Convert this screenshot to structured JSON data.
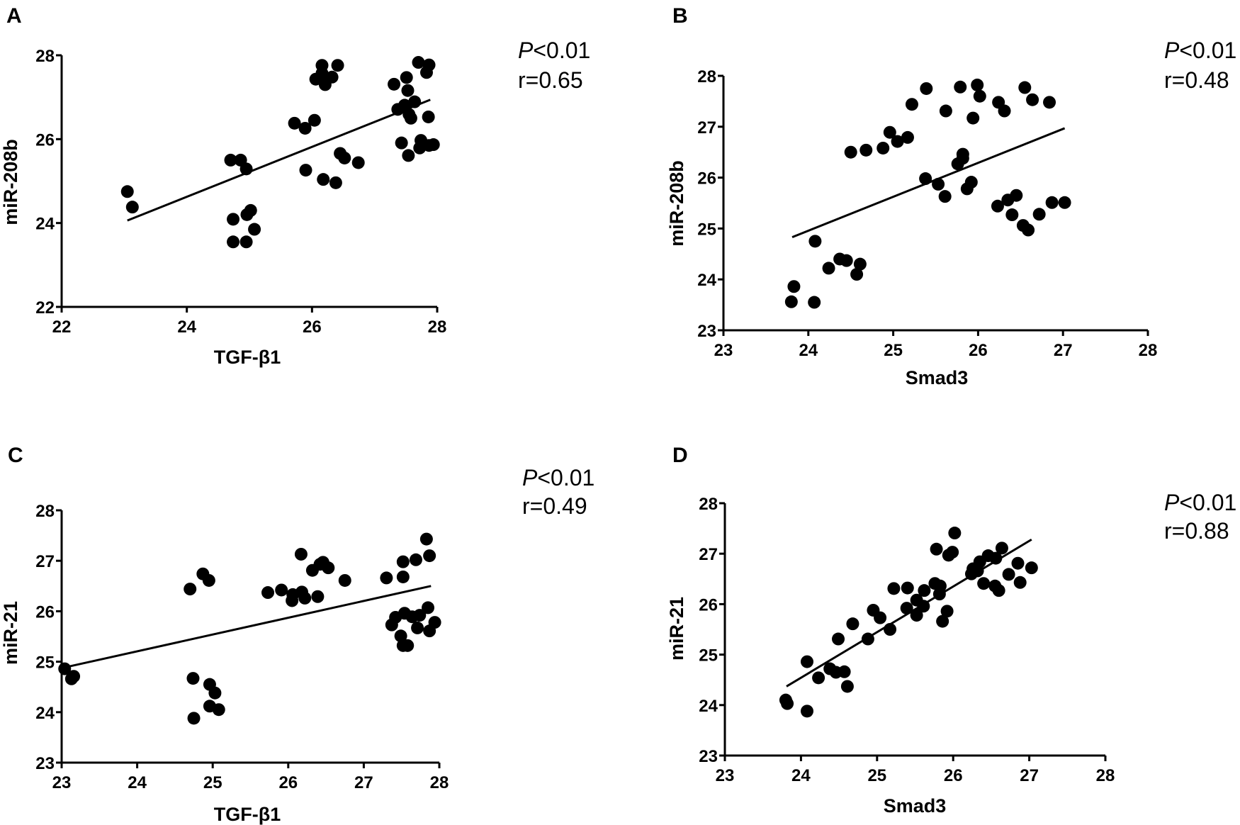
{
  "chart_data": [
    {
      "panel": "A",
      "type": "scatter",
      "xlabel": "TGF-β1",
      "ylabel": "miR-208b",
      "xlim": [
        22,
        28
      ],
      "ylim": [
        22,
        28
      ],
      "xticks": [
        "22",
        "24",
        "26",
        "28"
      ],
      "yticks": [
        "22",
        "24",
        "26",
        "28"
      ],
      "p_prefix": "P",
      "p_value": "<0.01",
      "r_text": "r=0.65",
      "fit_line": [
        [
          23.05,
          24.06
        ],
        [
          27.89,
          26.94
        ]
      ],
      "points": [
        [
          23.05,
          24.75
        ],
        [
          23.13,
          24.38
        ],
        [
          24.7,
          25.5
        ],
        [
          24.86,
          25.5
        ],
        [
          24.95,
          25.29
        ],
        [
          24.74,
          24.09
        ],
        [
          25.02,
          24.3
        ],
        [
          24.96,
          24.2
        ],
        [
          25.08,
          23.85
        ],
        [
          24.74,
          23.55
        ],
        [
          24.95,
          23.55
        ],
        [
          25.72,
          26.38
        ],
        [
          25.89,
          26.26
        ],
        [
          26.04,
          26.45
        ],
        [
          25.9,
          25.26
        ],
        [
          26.18,
          25.04
        ],
        [
          26.38,
          24.96
        ],
        [
          26.45,
          25.66
        ],
        [
          26.52,
          25.55
        ],
        [
          26.74,
          25.44
        ],
        [
          26.06,
          27.43
        ],
        [
          26.16,
          27.76
        ],
        [
          26.32,
          27.48
        ],
        [
          26.21,
          27.3
        ],
        [
          26.41,
          27.76
        ],
        [
          26.16,
          27.57
        ],
        [
          27.31,
          27.31
        ],
        [
          27.51,
          27.47
        ],
        [
          27.53,
          27.16
        ],
        [
          27.64,
          26.89
        ],
        [
          27.48,
          26.81
        ],
        [
          27.37,
          26.71
        ],
        [
          27.55,
          26.59
        ],
        [
          27.58,
          26.5
        ],
        [
          27.86,
          26.53
        ],
        [
          27.7,
          27.83
        ],
        [
          27.87,
          27.77
        ],
        [
          27.83,
          27.59
        ],
        [
          27.43,
          25.91
        ],
        [
          27.74,
          25.97
        ],
        [
          27.72,
          25.79
        ],
        [
          27.54,
          25.61
        ],
        [
          27.87,
          25.85
        ],
        [
          27.94,
          25.87
        ]
      ]
    },
    {
      "panel": "B",
      "type": "scatter",
      "xlabel": "Smad3",
      "ylabel": "miR-208b",
      "xlim": [
        23,
        28
      ],
      "ylim": [
        23,
        28
      ],
      "xticks": [
        "23",
        "24",
        "25",
        "26",
        "27",
        "28"
      ],
      "yticks": [
        "23",
        "24",
        "25",
        "26",
        "27",
        "28"
      ],
      "p_prefix": "P",
      "p_value": "<0.01",
      "r_text": "r=0.48",
      "fit_line": [
        [
          23.81,
          24.83
        ],
        [
          27.02,
          26.97
        ]
      ],
      "points": [
        [
          23.8,
          23.56
        ],
        [
          23.83,
          23.86
        ],
        [
          24.07,
          23.55
        ],
        [
          24.08,
          24.75
        ],
        [
          24.24,
          24.22
        ],
        [
          24.37,
          24.4
        ],
        [
          24.45,
          24.37
        ],
        [
          24.57,
          24.1
        ],
        [
          24.61,
          24.3
        ],
        [
          24.5,
          26.5
        ],
        [
          24.68,
          26.54
        ],
        [
          24.88,
          26.58
        ],
        [
          24.96,
          26.89
        ],
        [
          25.05,
          26.71
        ],
        [
          25.17,
          26.79
        ],
        [
          25.22,
          27.44
        ],
        [
          25.39,
          27.75
        ],
        [
          25.38,
          25.98
        ],
        [
          25.53,
          25.87
        ],
        [
          25.61,
          25.63
        ],
        [
          25.62,
          27.31
        ],
        [
          25.76,
          26.27
        ],
        [
          25.82,
          26.38
        ],
        [
          25.82,
          26.46
        ],
        [
          25.79,
          27.78
        ],
        [
          25.92,
          25.91
        ],
        [
          25.87,
          25.78
        ],
        [
          25.94,
          27.17
        ],
        [
          25.99,
          27.82
        ],
        [
          26.02,
          27.6
        ],
        [
          26.24,
          27.48
        ],
        [
          26.31,
          27.31
        ],
        [
          26.23,
          25.44
        ],
        [
          26.35,
          25.56
        ],
        [
          26.45,
          25.65
        ],
        [
          26.4,
          25.27
        ],
        [
          26.53,
          25.06
        ],
        [
          26.59,
          24.97
        ],
        [
          26.72,
          25.28
        ],
        [
          26.55,
          27.77
        ],
        [
          26.64,
          27.53
        ],
        [
          26.84,
          27.48
        ],
        [
          26.87,
          25.51
        ],
        [
          27.02,
          25.51
        ]
      ]
    },
    {
      "panel": "C",
      "type": "scatter",
      "xlabel": "TGF-β1",
      "ylabel": "miR-21",
      "xlim": [
        23,
        28
      ],
      "ylim": [
        23,
        28
      ],
      "xticks": [
        "23",
        "24",
        "25",
        "26",
        "27",
        "28"
      ],
      "yticks": [
        "23",
        "24",
        "25",
        "26",
        "27",
        "28"
      ],
      "p_prefix": "P",
      "p_value": "<0.01",
      "r_text": "r=0.49",
      "fit_line": [
        [
          23.05,
          24.89
        ],
        [
          27.89,
          26.5
        ]
      ],
      "points": [
        [
          23.04,
          24.86
        ],
        [
          23.13,
          24.66
        ],
        [
          23.16,
          24.71
        ],
        [
          24.7,
          26.44
        ],
        [
          24.87,
          26.74
        ],
        [
          24.95,
          26.61
        ],
        [
          24.74,
          24.67
        ],
        [
          24.96,
          24.55
        ],
        [
          25.03,
          24.38
        ],
        [
          24.96,
          24.12
        ],
        [
          25.08,
          24.05
        ],
        [
          24.75,
          23.88
        ],
        [
          25.73,
          26.37
        ],
        [
          25.91,
          26.42
        ],
        [
          26.05,
          26.21
        ],
        [
          26.06,
          26.33
        ],
        [
          26.18,
          26.38
        ],
        [
          26.22,
          26.26
        ],
        [
          26.17,
          27.13
        ],
        [
          26.32,
          26.81
        ],
        [
          26.39,
          26.29
        ],
        [
          26.42,
          26.93
        ],
        [
          26.46,
          26.97
        ],
        [
          26.53,
          26.86
        ],
        [
          26.75,
          26.61
        ],
        [
          27.3,
          26.66
        ],
        [
          27.52,
          26.68
        ],
        [
          27.52,
          26.98
        ],
        [
          27.69,
          27.02
        ],
        [
          27.83,
          27.43
        ],
        [
          27.87,
          27.1
        ],
        [
          27.37,
          25.73
        ],
        [
          27.42,
          25.88
        ],
        [
          27.54,
          25.96
        ],
        [
          27.64,
          25.89
        ],
        [
          27.74,
          25.92
        ],
        [
          27.49,
          25.51
        ],
        [
          27.52,
          25.32
        ],
        [
          27.58,
          25.32
        ],
        [
          27.71,
          25.67
        ],
        [
          27.85,
          26.07
        ],
        [
          27.87,
          25.61
        ],
        [
          27.94,
          25.78
        ]
      ]
    },
    {
      "panel": "D",
      "type": "scatter",
      "xlabel": "Smad3",
      "ylabel": "miR-21",
      "xlim": [
        23,
        28
      ],
      "ylim": [
        23,
        28
      ],
      "xticks": [
        "23",
        "24",
        "25",
        "26",
        "27",
        "28"
      ],
      "yticks": [
        "23",
        "24",
        "25",
        "26",
        "27",
        "28"
      ],
      "p_prefix": "P",
      "p_value": "<0.01",
      "r_text": "r=0.88",
      "fit_line": [
        [
          23.81,
          24.37
        ],
        [
          27.03,
          27.28
        ]
      ],
      "points": [
        [
          23.8,
          24.1
        ],
        [
          23.82,
          24.03
        ],
        [
          24.08,
          23.88
        ],
        [
          24.08,
          24.86
        ],
        [
          24.23,
          24.54
        ],
        [
          24.38,
          24.72
        ],
        [
          24.46,
          24.65
        ],
        [
          24.57,
          24.66
        ],
        [
          24.61,
          24.37
        ],
        [
          24.49,
          25.31
        ],
        [
          24.68,
          25.61
        ],
        [
          24.88,
          25.31
        ],
        [
          24.95,
          25.88
        ],
        [
          25.04,
          25.73
        ],
        [
          25.17,
          25.5
        ],
        [
          25.22,
          26.31
        ],
        [
          25.4,
          26.32
        ],
        [
          25.39,
          25.92
        ],
        [
          25.52,
          26.08
        ],
        [
          25.52,
          25.78
        ],
        [
          25.61,
          25.96
        ],
        [
          25.62,
          26.27
        ],
        [
          25.76,
          26.41
        ],
        [
          25.83,
          26.36
        ],
        [
          25.82,
          26.2
        ],
        [
          25.86,
          25.66
        ],
        [
          25.92,
          25.86
        ],
        [
          25.78,
          27.09
        ],
        [
          25.94,
          26.97
        ],
        [
          25.99,
          27.03
        ],
        [
          26.02,
          27.41
        ],
        [
          26.24,
          26.6
        ],
        [
          26.26,
          26.7
        ],
        [
          26.32,
          26.66
        ],
        [
          26.35,
          26.84
        ],
        [
          26.46,
          26.96
        ],
        [
          26.56,
          26.91
        ],
        [
          26.64,
          27.11
        ],
        [
          26.4,
          26.41
        ],
        [
          26.55,
          26.36
        ],
        [
          26.6,
          26.27
        ],
        [
          26.73,
          26.59
        ],
        [
          26.85,
          26.81
        ],
        [
          26.88,
          26.43
        ],
        [
          27.03,
          26.72
        ]
      ]
    }
  ]
}
